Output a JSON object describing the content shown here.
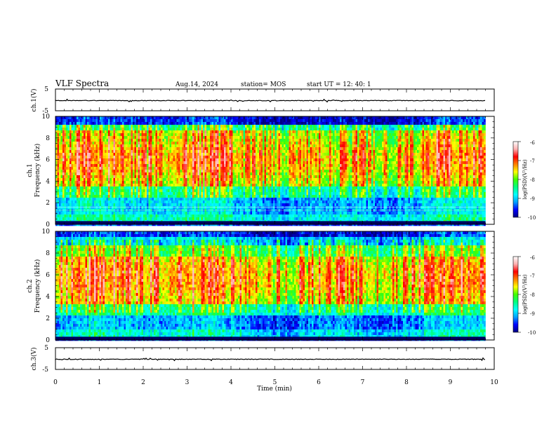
{
  "header": {
    "title": "VLF Spectra",
    "date": "Aug.14, 2024",
    "station": "station= MOS",
    "start": "start  UT =   12: 40: 1"
  },
  "chart_data": [
    {
      "type": "line",
      "name": "ch1-waveform",
      "ylabel": "ch.1(V)",
      "ylim": [
        -5,
        5
      ],
      "yticks": [
        "5",
        "-5"
      ],
      "xlim": [
        0,
        10
      ],
      "baseline": 0
    },
    {
      "type": "heatmap",
      "name": "ch1-spectrogram",
      "ylabel": "ch.1  Frequency  (kHz)",
      "ylabel_line1": "ch.1",
      "ylabel_line2": "Frequency  (kHz)",
      "ylim": [
        0,
        10
      ],
      "yticks": [
        "0",
        "2",
        "4",
        "6",
        "8",
        "10"
      ],
      "xlim": [
        0,
        10
      ],
      "data_end_min": 9.8,
      "colorbar": {
        "label": "log(PSD)(V²/Hz)",
        "range": [
          -10,
          -6
        ],
        "ticks": [
          "-6",
          "-7",
          "-8",
          "-9",
          "-10"
        ],
        "colors": [
          "#000080",
          "#0000ff",
          "#00a0ff",
          "#00ffff",
          "#00ff80",
          "#40ff00",
          "#ffff00",
          "#ff8000",
          "#ff0000",
          "#ffb0b0",
          "#ffffff"
        ]
      }
    },
    {
      "type": "heatmap",
      "name": "ch2-spectrogram",
      "ylabel": "ch.2  Frequency  (kHz)",
      "ylabel_line1": "ch.2",
      "ylabel_line2": "Frequency  (kHz)",
      "ylim": [
        0,
        10
      ],
      "yticks": [
        "0",
        "2",
        "4",
        "6",
        "8",
        "10"
      ],
      "xlim": [
        0,
        10
      ],
      "data_end_min": 9.8,
      "colorbar": {
        "label": "log(PSD)(V²/Hz)",
        "range": [
          -10,
          -6
        ],
        "ticks": [
          "-6",
          "-7",
          "-8",
          "-9",
          "-10"
        ],
        "colors": [
          "#000080",
          "#0000ff",
          "#00a0ff",
          "#00ffff",
          "#00ff80",
          "#40ff00",
          "#ffff00",
          "#ff8000",
          "#ff0000",
          "#ffb0b0",
          "#ffffff"
        ]
      }
    },
    {
      "type": "line",
      "name": "ch3-waveform",
      "ylabel": "ch.3(V)",
      "ylim": [
        -5,
        5
      ],
      "yticks": [
        "5",
        "-5"
      ],
      "xlim": [
        0,
        10
      ],
      "baseline": 0
    }
  ],
  "xaxis": {
    "label": "Time  (min)",
    "ticks": [
      "0",
      "1",
      "2",
      "3",
      "4",
      "5",
      "6",
      "7",
      "8",
      "9",
      "10"
    ]
  }
}
